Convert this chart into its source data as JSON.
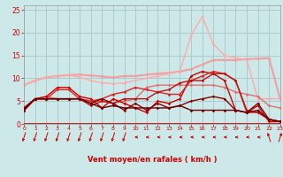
{
  "xlabel": "Vent moyen/en rafales ( km/h )",
  "x_ticks": [
    0,
    1,
    2,
    3,
    4,
    5,
    6,
    7,
    8,
    9,
    10,
    11,
    12,
    13,
    14,
    15,
    16,
    17,
    18,
    19,
    20,
    21,
    22,
    23
  ],
  "y_ticks": [
    0,
    5,
    10,
    15,
    20,
    25
  ],
  "ylim": [
    0,
    26
  ],
  "xlim": [
    0,
    23
  ],
  "bg_color": "#cce8e8",
  "grid_color": "#aacccc",
  "series": [
    {
      "x": [
        0,
        1,
        2,
        3,
        4,
        5,
        6,
        7,
        8,
        9,
        10,
        11,
        12,
        13,
        14,
        15,
        16,
        17,
        18,
        19,
        20,
        21,
        22,
        23
      ],
      "y": [
        8.5,
        9.5,
        10.2,
        10.5,
        10.7,
        10.8,
        10.6,
        10.4,
        10.2,
        10.5,
        10.5,
        10.8,
        11.0,
        11.2,
        11.5,
        12.0,
        13.0,
        14.0,
        14.0,
        14.0,
        14.2,
        14.3,
        14.4,
        5.5
      ],
      "color": "#f0a0a0",
      "lw": 1.5,
      "marker": "D",
      "ms": 2.0,
      "zorder": 2
    },
    {
      "x": [
        0,
        1,
        2,
        3,
        4,
        5,
        6,
        7,
        8,
        9,
        10,
        11,
        12,
        13,
        14,
        15,
        16,
        17,
        18,
        19,
        20,
        21,
        22,
        23
      ],
      "y": [
        8.5,
        9.5,
        10.2,
        10.5,
        10.7,
        10.2,
        9.5,
        9.0,
        8.8,
        9.0,
        9.5,
        10.0,
        10.5,
        11.0,
        11.5,
        19.5,
        23.5,
        17.5,
        15.0,
        14.5,
        14.0,
        5.5,
        5.5,
        5.5
      ],
      "color": "#ffaaaa",
      "lw": 1.0,
      "marker": "D",
      "ms": 1.8,
      "zorder": 2
    },
    {
      "x": [
        0,
        1,
        2,
        3,
        4,
        5,
        6,
        7,
        8,
        9,
        10,
        11,
        12,
        13,
        14,
        15,
        16,
        17,
        18,
        19,
        20,
        21,
        22,
        23
      ],
      "y": [
        3.0,
        5.5,
        6.0,
        5.5,
        5.5,
        5.5,
        5.0,
        5.0,
        4.5,
        5.0,
        5.5,
        8.0,
        8.5,
        8.5,
        8.5,
        8.5,
        8.5,
        8.5,
        8.0,
        7.0,
        6.5,
        6.0,
        4.0,
        3.5
      ],
      "color": "#e07070",
      "lw": 1.0,
      "marker": "D",
      "ms": 1.8,
      "zorder": 3
    },
    {
      "x": [
        0,
        1,
        2,
        3,
        4,
        5,
        6,
        7,
        8,
        9,
        10,
        11,
        12,
        13,
        14,
        15,
        16,
        17,
        18,
        19,
        20,
        21,
        22,
        23
      ],
      "y": [
        3.5,
        5.5,
        6.0,
        8.0,
        8.0,
        6.0,
        5.5,
        3.5,
        5.5,
        4.5,
        3.5,
        2.5,
        5.0,
        4.5,
        5.5,
        10.5,
        11.5,
        11.0,
        9.5,
        3.0,
        2.5,
        4.0,
        0.5,
        0.5
      ],
      "color": "#cc0000",
      "lw": 1.0,
      "marker": "D",
      "ms": 1.8,
      "zorder": 3
    },
    {
      "x": [
        0,
        1,
        2,
        3,
        4,
        5,
        6,
        7,
        8,
        9,
        10,
        11,
        12,
        13,
        14,
        15,
        16,
        17,
        18,
        19,
        20,
        21,
        22,
        23
      ],
      "y": [
        3.0,
        5.5,
        5.5,
        7.5,
        7.5,
        5.5,
        5.0,
        5.5,
        6.5,
        7.0,
        8.0,
        7.5,
        7.0,
        6.5,
        6.5,
        9.5,
        10.5,
        11.5,
        11.0,
        9.5,
        2.5,
        2.5,
        1.0,
        0.5
      ],
      "color": "#dd2222",
      "lw": 1.0,
      "marker": "D",
      "ms": 1.8,
      "zorder": 3
    },
    {
      "x": [
        0,
        1,
        2,
        3,
        4,
        5,
        6,
        7,
        8,
        9,
        10,
        11,
        12,
        13,
        14,
        15,
        16,
        17,
        18,
        19,
        20,
        21,
        22,
        23
      ],
      "y": [
        3.0,
        5.5,
        5.5,
        5.5,
        5.5,
        5.5,
        4.0,
        5.0,
        4.5,
        5.5,
        5.5,
        5.5,
        7.0,
        7.5,
        9.0,
        9.5,
        9.5,
        11.0,
        11.0,
        9.5,
        3.0,
        2.5,
        1.0,
        0.5
      ],
      "color": "#bb1111",
      "lw": 1.0,
      "marker": "D",
      "ms": 1.8,
      "zorder": 3
    },
    {
      "x": [
        0,
        1,
        2,
        3,
        4,
        5,
        6,
        7,
        8,
        9,
        10,
        11,
        12,
        13,
        14,
        15,
        16,
        17,
        18,
        19,
        20,
        21,
        22,
        23
      ],
      "y": [
        3.0,
        5.5,
        5.5,
        5.5,
        5.5,
        5.5,
        4.5,
        5.5,
        4.5,
        3.0,
        4.5,
        3.0,
        4.5,
        3.5,
        4.0,
        5.0,
        5.5,
        6.0,
        5.5,
        3.0,
        2.5,
        4.5,
        1.0,
        0.5
      ],
      "color": "#880000",
      "lw": 1.0,
      "marker": "D",
      "ms": 1.8,
      "zorder": 3
    },
    {
      "x": [
        0,
        1,
        2,
        3,
        4,
        5,
        6,
        7,
        8,
        9,
        10,
        11,
        12,
        13,
        14,
        15,
        16,
        17,
        18,
        19,
        20,
        21,
        22,
        23
      ],
      "y": [
        3.5,
        5.5,
        5.5,
        5.5,
        5.5,
        5.5,
        4.5,
        3.5,
        4.0,
        3.5,
        3.5,
        3.5,
        3.5,
        3.5,
        4.0,
        3.0,
        3.0,
        3.0,
        3.0,
        3.0,
        2.5,
        3.0,
        1.0,
        0.5
      ],
      "color": "#660000",
      "lw": 1.0,
      "marker": "D",
      "ms": 1.8,
      "zorder": 3
    }
  ],
  "wind_angles": [
    225,
    225,
    225,
    225,
    225,
    225,
    225,
    225,
    225,
    225,
    270,
    270,
    270,
    270,
    270,
    270,
    270,
    270,
    270,
    270,
    270,
    270,
    315,
    45
  ],
  "arrow_color": "#cc0000",
  "hline_color": "#cc0000",
  "tick_color": "#cc0000",
  "xlabel_color": "#cc0000"
}
